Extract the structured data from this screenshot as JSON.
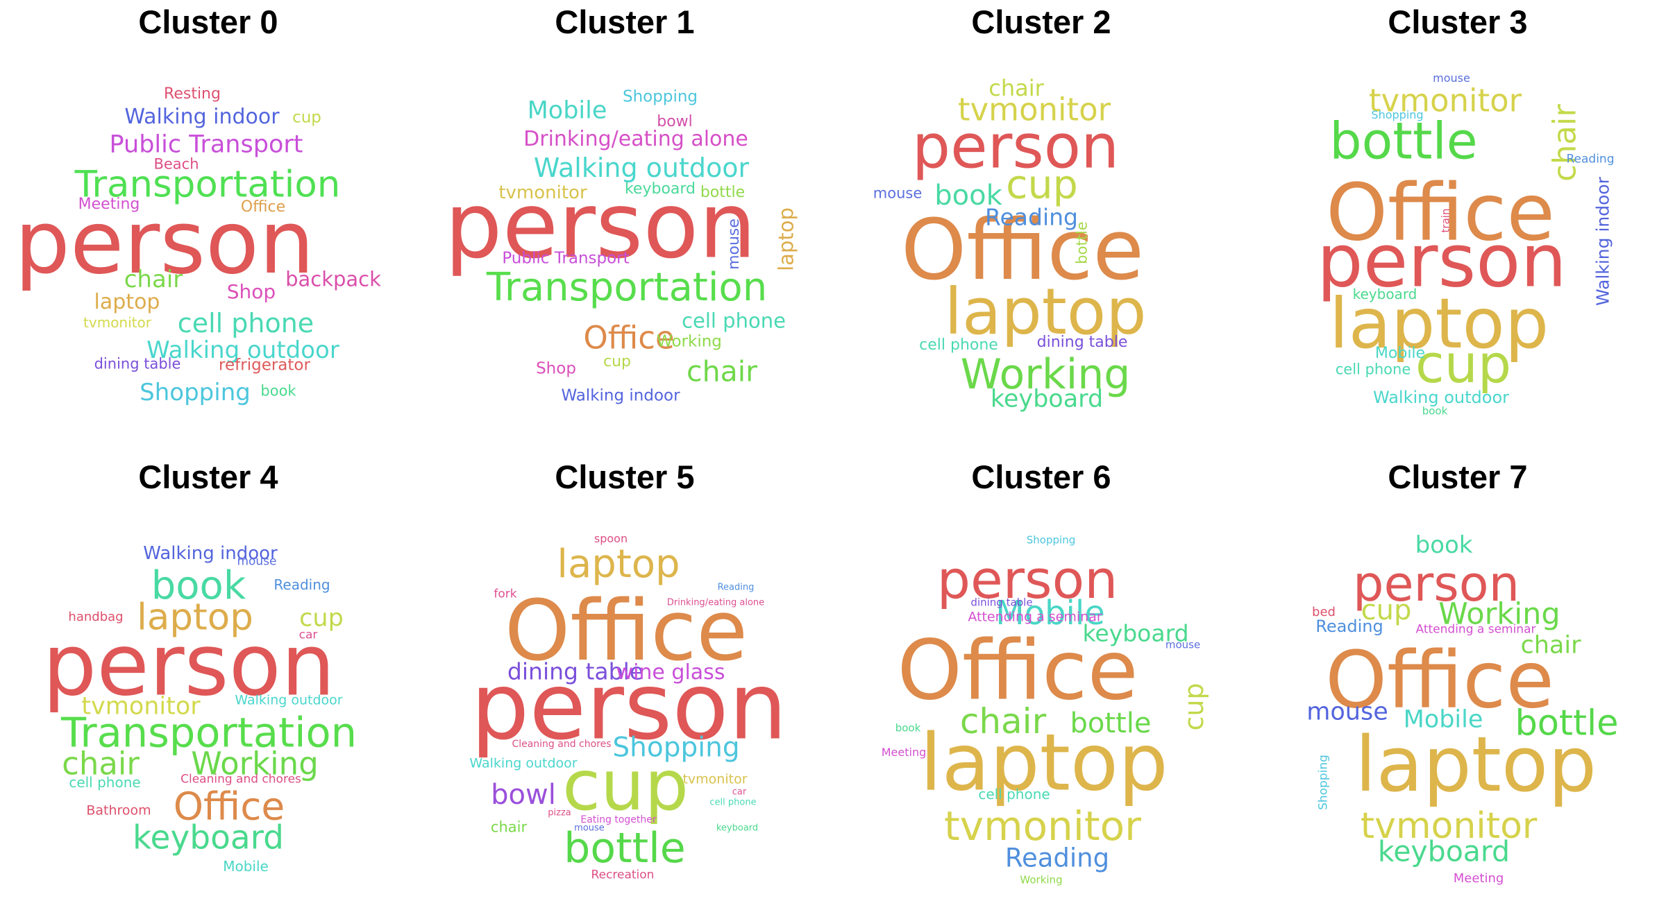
{
  "clusters": [
    {
      "title": "Cluster 0",
      "words": [
        {
          "text": "person",
          "color": "#df5757"
        },
        {
          "text": "Transportation",
          "color": "#4fe053"
        },
        {
          "text": "Public Transport",
          "color": "#c84fd9"
        },
        {
          "text": "Walking indoor",
          "color": "#5364dd"
        },
        {
          "text": "cell phone",
          "color": "#49d9b3"
        },
        {
          "text": "Walking outdoor",
          "color": "#49d6cc"
        },
        {
          "text": "Shopping",
          "color": "#4cc6dd"
        },
        {
          "text": "backpack",
          "color": "#da4fa9"
        },
        {
          "text": "chair",
          "color": "#7ad84a"
        },
        {
          "text": "laptop",
          "color": "#ddac4b"
        },
        {
          "text": "Shop",
          "color": "#dc4fba"
        },
        {
          "text": "Resting",
          "color": "#de5070"
        },
        {
          "text": "cup",
          "color": "#c3d84a"
        },
        {
          "text": "Beach",
          "color": "#dd4f85"
        },
        {
          "text": "Meeting",
          "color": "#d34fd1"
        },
        {
          "text": "Office",
          "color": "#dd9f4b"
        },
        {
          "text": "tvmonitor",
          "color": "#d3d94b"
        },
        {
          "text": "dining table",
          "color": "#7a4fda"
        },
        {
          "text": "refrigerator",
          "color": "#de5a5a"
        },
        {
          "text": "book",
          "color": "#49d98d"
        }
      ]
    },
    {
      "title": "Cluster 1",
      "words": [
        {
          "text": "person",
          "color": "#df5757"
        },
        {
          "text": "Transportation",
          "color": "#57dd4c"
        },
        {
          "text": "Walking outdoor",
          "color": "#49d6cc"
        },
        {
          "text": "Drinking/eating alone",
          "color": "#d64fc7"
        },
        {
          "text": "Mobile",
          "color": "#49d6c6"
        },
        {
          "text": "Shopping",
          "color": "#4cc6dd"
        },
        {
          "text": "bowl",
          "color": "#d34fa9"
        },
        {
          "text": "tvmonitor",
          "color": "#d8c24b"
        },
        {
          "text": "keyboard",
          "color": "#49d99a"
        },
        {
          "text": "bottle",
          "color": "#8fd94a"
        },
        {
          "text": "laptop",
          "color": "#ddac4b"
        },
        {
          "text": "mouse",
          "color": "#5a6ede"
        },
        {
          "text": "Public Transport",
          "color": "#c84fd9"
        },
        {
          "text": "Office",
          "color": "#dd8a4b"
        },
        {
          "text": "cell phone",
          "color": "#49d9b3"
        },
        {
          "text": "Working",
          "color": "#8ed94a"
        },
        {
          "text": "chair",
          "color": "#6fd84a"
        },
        {
          "text": "Shop",
          "color": "#dc4fba"
        },
        {
          "text": "cup",
          "color": "#b5d84a"
        },
        {
          "text": "Walking indoor",
          "color": "#5364dd"
        }
      ]
    },
    {
      "title": "Cluster 2",
      "words": [
        {
          "text": "Office",
          "color": "#dd8a4b"
        },
        {
          "text": "person",
          "color": "#df5757"
        },
        {
          "text": "laptop",
          "color": "#ddb54b"
        },
        {
          "text": "Working",
          "color": "#6ad84a"
        },
        {
          "text": "tvmonitor",
          "color": "#d6d24b"
        },
        {
          "text": "cup",
          "color": "#c3d84a"
        },
        {
          "text": "chair",
          "color": "#c4d94a"
        },
        {
          "text": "book",
          "color": "#49d9a3"
        },
        {
          "text": "Reading",
          "color": "#4f8fdd"
        },
        {
          "text": "mouse",
          "color": "#5a6ede"
        },
        {
          "text": "bottle",
          "color": "#a3d84a"
        },
        {
          "text": "keyboard",
          "color": "#49d98d"
        },
        {
          "text": "cell phone",
          "color": "#49d9b3"
        },
        {
          "text": "dining table",
          "color": "#7a4fda"
        }
      ]
    },
    {
      "title": "Cluster 3",
      "words": [
        {
          "text": "Office",
          "color": "#dd8a4b"
        },
        {
          "text": "person",
          "color": "#df5757"
        },
        {
          "text": "laptop",
          "color": "#ddb54b"
        },
        {
          "text": "bottle",
          "color": "#55d84a"
        },
        {
          "text": "cup",
          "color": "#b5d84a"
        },
        {
          "text": "tvmonitor",
          "color": "#d6d24b"
        },
        {
          "text": "chair",
          "color": "#c4d94a"
        },
        {
          "text": "Walking indoor",
          "color": "#5364dd"
        },
        {
          "text": "mouse",
          "color": "#5a6ede"
        },
        {
          "text": "Shopping",
          "color": "#4cc6dd"
        },
        {
          "text": "Reading",
          "color": "#4f8fdd"
        },
        {
          "text": "train",
          "color": "#dd4f7a"
        },
        {
          "text": "keyboard",
          "color": "#49d98d"
        },
        {
          "text": "Mobile",
          "color": "#49d6c6"
        },
        {
          "text": "cell phone",
          "color": "#49d9b3"
        },
        {
          "text": "Walking outdoor",
          "color": "#49d6cc"
        },
        {
          "text": "book",
          "color": "#49d98d"
        }
      ]
    },
    {
      "title": "Cluster 4",
      "words": [
        {
          "text": "person",
          "color": "#df5757"
        },
        {
          "text": "Transportation",
          "color": "#57dd4c"
        },
        {
          "text": "book",
          "color": "#49d9a3"
        },
        {
          "text": "laptop",
          "color": "#ddac4b"
        },
        {
          "text": "keyboard",
          "color": "#49d98d"
        },
        {
          "text": "Office",
          "color": "#dd8a4b"
        },
        {
          "text": "chair",
          "color": "#7ad84a"
        },
        {
          "text": "Working",
          "color": "#6ad84a"
        },
        {
          "text": "tvmonitor",
          "color": "#d3d94b"
        },
        {
          "text": "cup",
          "color": "#c3d84a"
        },
        {
          "text": "Walking indoor",
          "color": "#5364dd"
        },
        {
          "text": "mouse",
          "color": "#5a6ede"
        },
        {
          "text": "Reading",
          "color": "#4f8fdd"
        },
        {
          "text": "handbag",
          "color": "#dd4f6a"
        },
        {
          "text": "car",
          "color": "#dd4f90"
        },
        {
          "text": "Walking outdoor",
          "color": "#49d6cc"
        },
        {
          "text": "cell phone",
          "color": "#49d9b3"
        },
        {
          "text": "Cleaning and chores",
          "color": "#dd4f85"
        },
        {
          "text": "Bathroom",
          "color": "#dd4f6a"
        },
        {
          "text": "Mobile",
          "color": "#49d6c6"
        }
      ]
    },
    {
      "title": "Cluster 5",
      "words": [
        {
          "text": "person",
          "color": "#df5757"
        },
        {
          "text": "Office",
          "color": "#dd8a4b"
        },
        {
          "text": "cup",
          "color": "#b5d84a"
        },
        {
          "text": "laptop",
          "color": "#ddb54b"
        },
        {
          "text": "bottle",
          "color": "#55d84a"
        },
        {
          "text": "Shopping",
          "color": "#4cc6dd"
        },
        {
          "text": "dining table",
          "color": "#7a4fda"
        },
        {
          "text": "wine glass",
          "color": "#c84fd9"
        },
        {
          "text": "bowl",
          "color": "#9a4fda"
        },
        {
          "text": "spoon",
          "color": "#dd4f85"
        },
        {
          "text": "fork",
          "color": "#dd4f90"
        },
        {
          "text": "Reading",
          "color": "#4f8fdd"
        },
        {
          "text": "Drinking/eating alone",
          "color": "#dd4f90"
        },
        {
          "text": "Cleaning and chores",
          "color": "#dd4f85"
        },
        {
          "text": "Walking outdoor",
          "color": "#49d6cc"
        },
        {
          "text": "tvmonitor",
          "color": "#d8c24b"
        },
        {
          "text": "car",
          "color": "#dd4f90"
        },
        {
          "text": "cell phone",
          "color": "#49d9b3"
        },
        {
          "text": "pizza",
          "color": "#dd4f85"
        },
        {
          "text": "Eating together",
          "color": "#d34fd1"
        },
        {
          "text": "chair",
          "color": "#7ad84a"
        },
        {
          "text": "mouse",
          "color": "#5a6ede"
        },
        {
          "text": "keyboard",
          "color": "#49d98d"
        },
        {
          "text": "Recreation",
          "color": "#dd4f85"
        }
      ]
    },
    {
      "title": "Cluster 6",
      "words": [
        {
          "text": "Office",
          "color": "#dd8a4b"
        },
        {
          "text": "laptop",
          "color": "#ddb54b"
        },
        {
          "text": "person",
          "color": "#df5757"
        },
        {
          "text": "tvmonitor",
          "color": "#d6d24b"
        },
        {
          "text": "Mobile",
          "color": "#49d6c6"
        },
        {
          "text": "chair",
          "color": "#7ad84a"
        },
        {
          "text": "bottle",
          "color": "#6ad84a"
        },
        {
          "text": "cup",
          "color": "#c3d84a"
        },
        {
          "text": "keyboard",
          "color": "#49d98d"
        },
        {
          "text": "Reading",
          "color": "#4f8fdd"
        },
        {
          "text": "Shopping",
          "color": "#4cc6dd"
        },
        {
          "text": "dining table",
          "color": "#7a4fda"
        },
        {
          "text": "Attending a seminar",
          "color": "#d34fd1"
        },
        {
          "text": "mouse",
          "color": "#5a6ede"
        },
        {
          "text": "book",
          "color": "#49d98d"
        },
        {
          "text": "Meeting",
          "color": "#d34fd1"
        },
        {
          "text": "cell phone",
          "color": "#49d9b3"
        },
        {
          "text": "Working",
          "color": "#8ed94a"
        }
      ]
    },
    {
      "title": "Cluster 7",
      "words": [
        {
          "text": "Office",
          "color": "#dd8a4b"
        },
        {
          "text": "laptop",
          "color": "#ddb54b"
        },
        {
          "text": "person",
          "color": "#df5757"
        },
        {
          "text": "tvmonitor",
          "color": "#d6d24b"
        },
        {
          "text": "bottle",
          "color": "#55d84a"
        },
        {
          "text": "keyboard",
          "color": "#49d98d"
        },
        {
          "text": "Working",
          "color": "#6ad84a"
        },
        {
          "text": "book",
          "color": "#49d9a3"
        },
        {
          "text": "cup",
          "color": "#c3d84a"
        },
        {
          "text": "chair",
          "color": "#7ad84a"
        },
        {
          "text": "mouse",
          "color": "#5364dd"
        },
        {
          "text": "Mobile",
          "color": "#49d6c6"
        },
        {
          "text": "Reading",
          "color": "#4f8fdd"
        },
        {
          "text": "bed",
          "color": "#dd4f6a"
        },
        {
          "text": "Attending a seminar",
          "color": "#d34fd1"
        },
        {
          "text": "Shopping",
          "color": "#4cc6dd"
        },
        {
          "text": "Meeting",
          "color": "#d34fd1"
        }
      ]
    }
  ]
}
